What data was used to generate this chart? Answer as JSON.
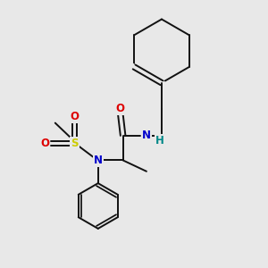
{
  "bg_color": "#e8e8e8",
  "bond_color": "#111111",
  "bond_lw": 1.4,
  "atom_colors": {
    "O": "#dd0000",
    "N": "#0000cc",
    "S": "#cccc00",
    "H": "#008888",
    "C": "#111111"
  },
  "font_size": 8.5,
  "fig_w": 3.0,
  "fig_h": 3.0,
  "dpi": 100
}
